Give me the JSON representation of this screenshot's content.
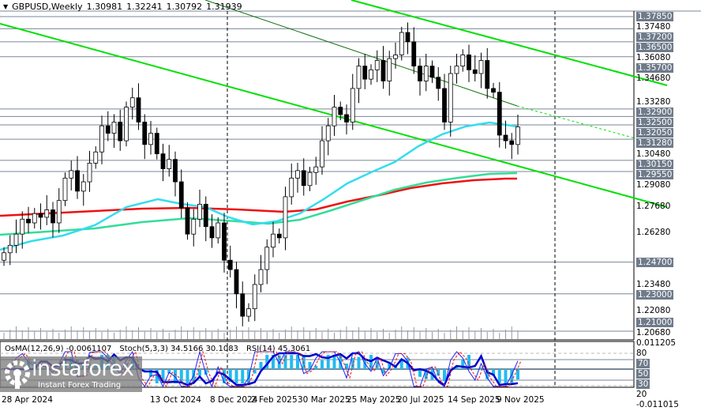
{
  "header": {
    "symbol": "GBPUSD,Weekly",
    "open": "1.30981",
    "high": "1.32241",
    "low": "1.30792",
    "close": "1.31939"
  },
  "price_axis": [
    "1.37480",
    "1.36080",
    "1.34680",
    "1.33280",
    "1.30480",
    "1.29080",
    "1.27680",
    "1.26280",
    "1.23480",
    "1.22080",
    "1.20680"
  ],
  "levels": [
    "1.37850",
    "1.37200",
    "1.36500",
    "1.35700",
    "1.32900",
    "1.32500",
    "1.32050",
    "1.31280",
    "1.30150",
    "1.29550",
    "1.24700",
    "1.23000",
    "1.21000"
  ],
  "indicator": {
    "osma": "OsMA(12,26,9) -0.0061107",
    "stoch": "Stoch(5,3,3) 34.5166 30.1083",
    "rsi": "RSI(14) 45.3061",
    "axis_top": "0.011205",
    "axis_bottom": "-0.011015",
    "lv80": "80",
    "lv70": "70",
    "lv50": "50",
    "lv30": "30",
    "lv20": "20"
  },
  "dates": [
    "28 Apr 2024",
    "13 Oct 2024",
    "8 Dec 2024",
    "2 Feb 2025",
    "30 Mar 2025",
    "25 May 2025",
    "20 Jul 2025",
    "14 Sep 2025",
    "9 Nov 2025"
  ],
  "logo": {
    "name": "instaforex",
    "tagline": "Instant Forex Trading"
  },
  "colors": {
    "trendline": "#00e000",
    "ma_fast": "#33ddee",
    "ma_mid": "#33dd99",
    "ma_slow": "#ee1111",
    "osma": "#22bbf0",
    "stoch": "#0000ee"
  },
  "closes": [
    1.252,
    1.256,
    1.262,
    1.27,
    1.268,
    1.273,
    1.271,
    1.275,
    1.268,
    1.28,
    1.292,
    1.296,
    1.285,
    1.29,
    1.3,
    1.306,
    1.32,
    1.316,
    1.322,
    1.312,
    1.33,
    1.335,
    1.322,
    1.31,
    1.316,
    1.305,
    1.297,
    1.302,
    1.29,
    1.276,
    1.262,
    1.27,
    1.278,
    1.266,
    1.26,
    1.268,
    1.248,
    1.243,
    1.23,
    1.218,
    1.222,
    1.235,
    1.243,
    1.255,
    1.262,
    1.26,
    1.282,
    1.292,
    1.296,
    1.288,
    1.295,
    1.298,
    1.312,
    1.32,
    1.33,
    1.326,
    1.322,
    1.34,
    1.352,
    1.345,
    1.35,
    1.355,
    1.344,
    1.356,
    1.358,
    1.37,
    1.365,
    1.352,
    1.344,
    1.352,
    1.346,
    1.34,
    1.322,
    1.348,
    1.352,
    1.358,
    1.35,
    1.348,
    1.355,
    1.34,
    1.338,
    1.315,
    1.312,
    1.31,
    1.31939
  ]
}
